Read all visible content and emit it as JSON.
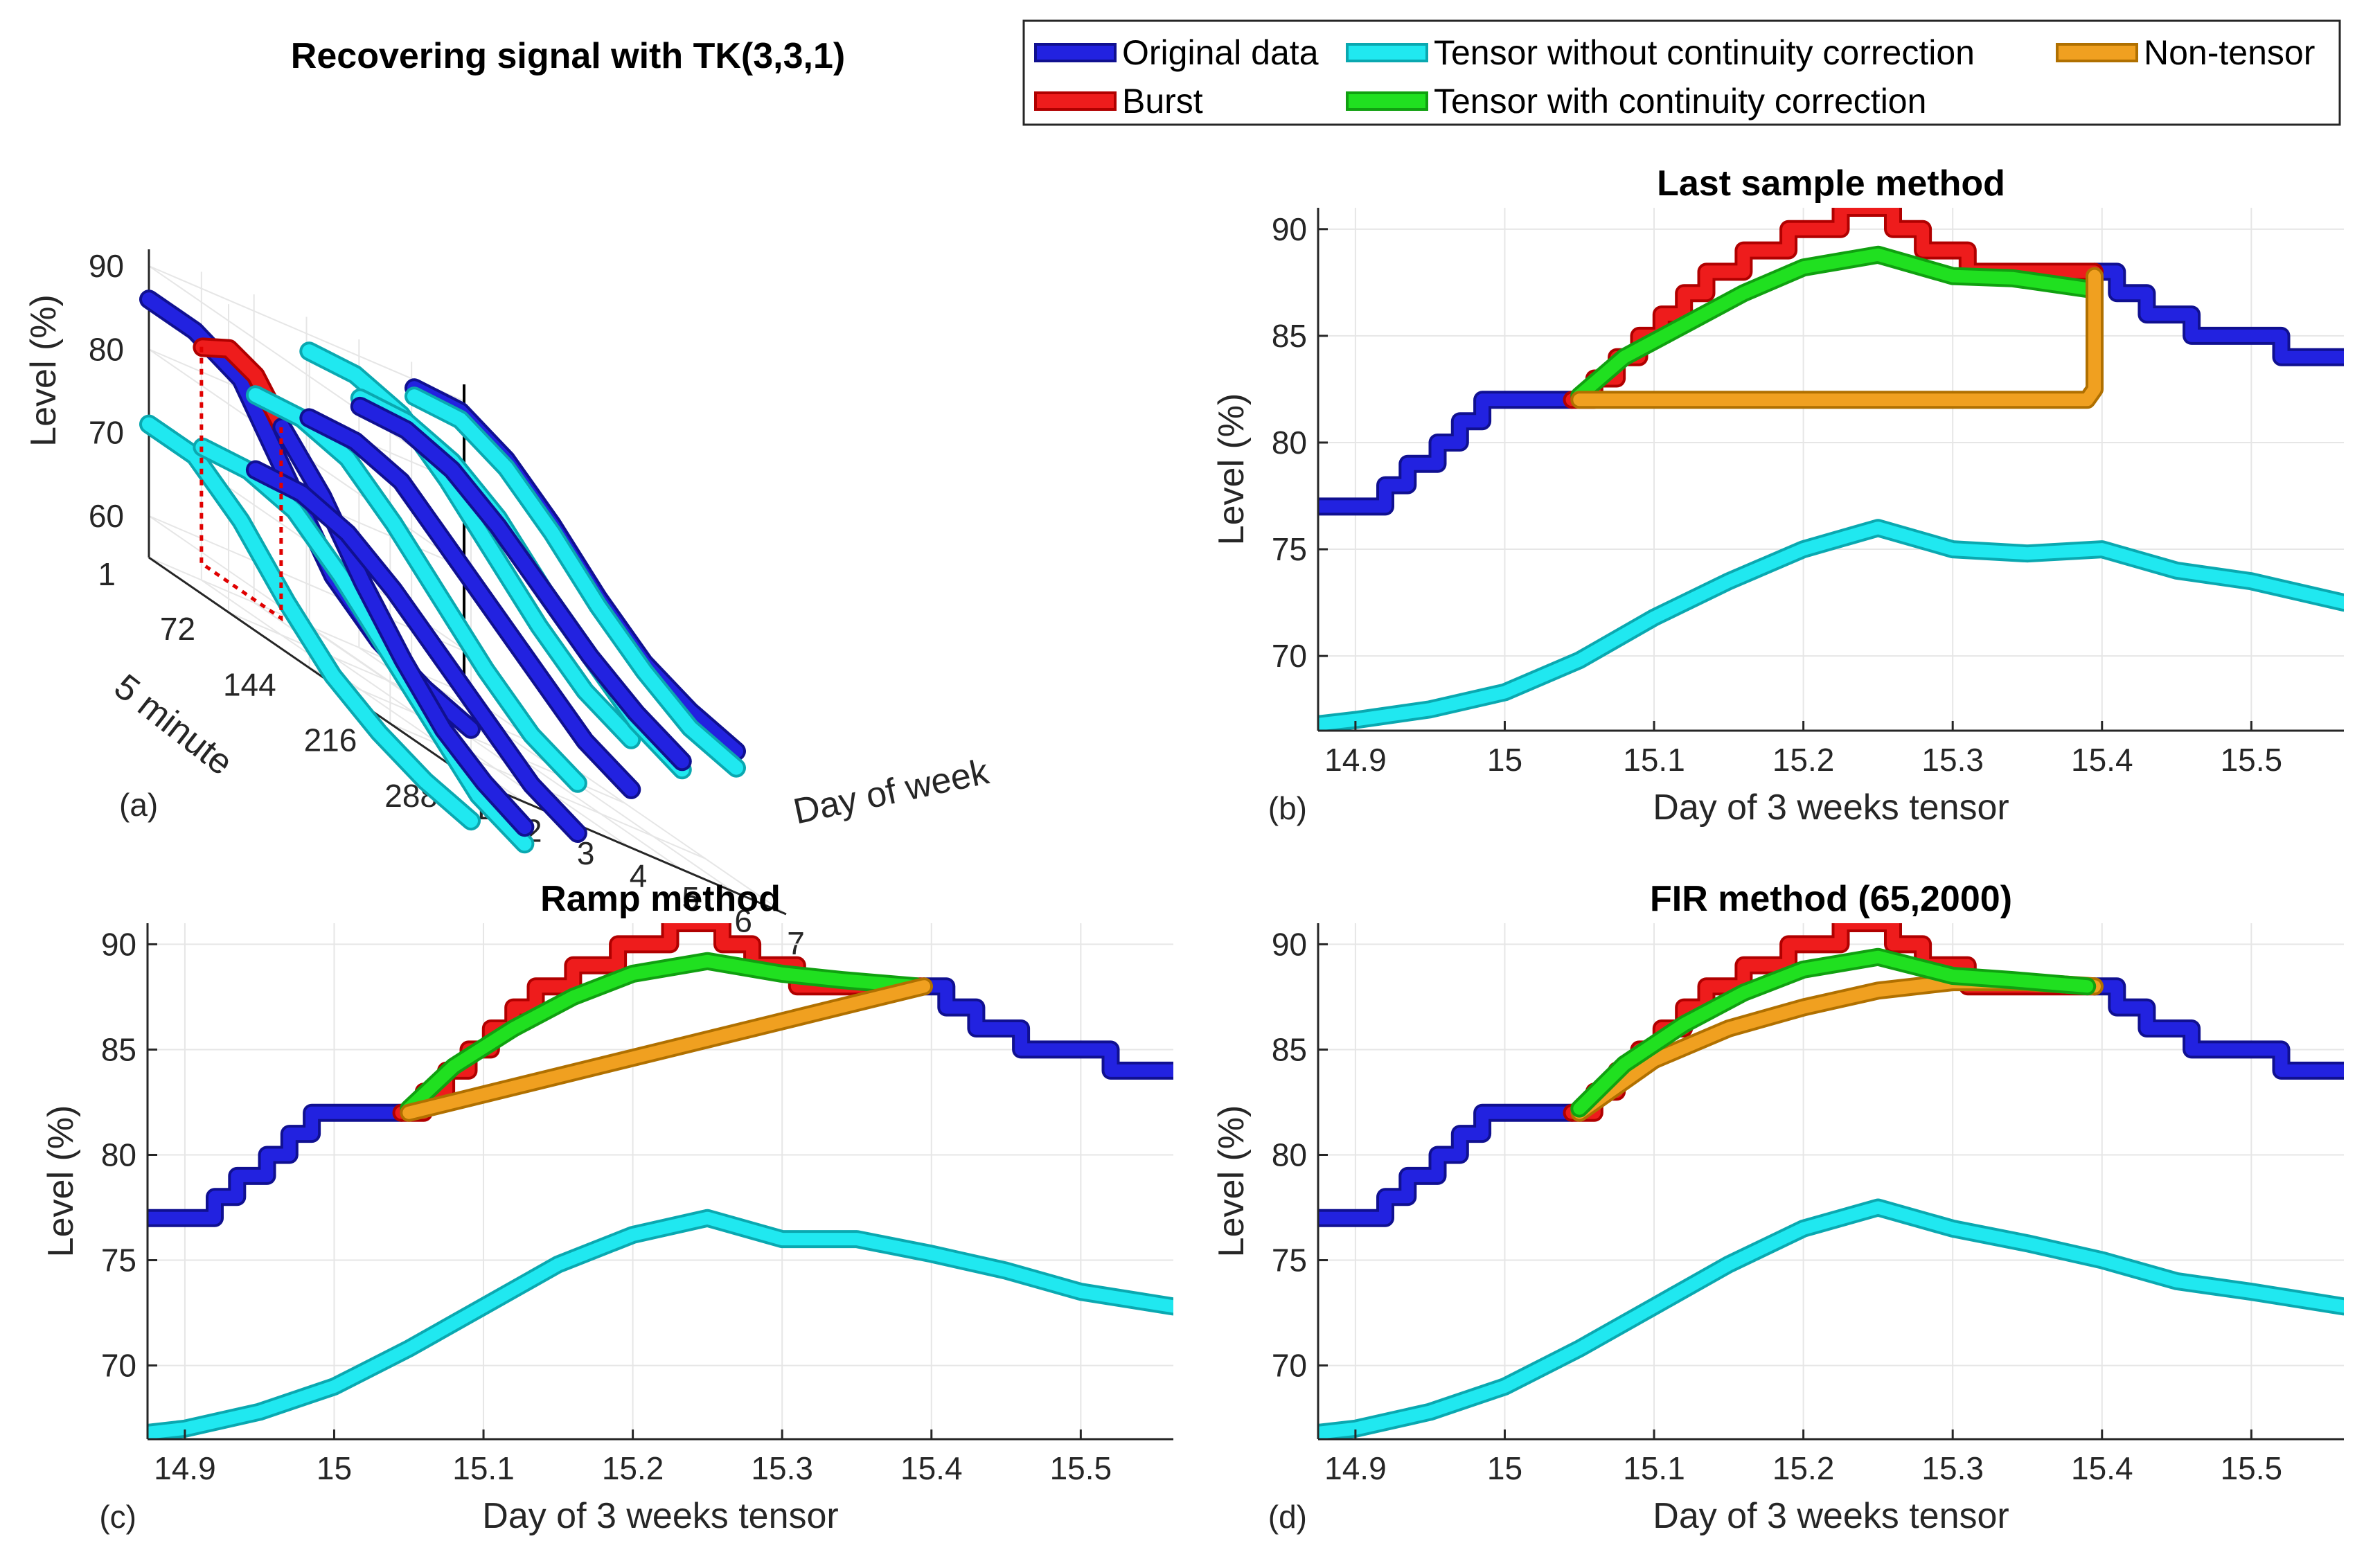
{
  "legend": [
    {
      "label": "Original data",
      "color": "#2222e0",
      "edge": "#101090"
    },
    {
      "label": "Burst",
      "color": "#ee1c1c",
      "edge": "#b00000"
    },
    {
      "label": "Tensor without continuity correction",
      "color": "#20e8f0",
      "edge": "#0aa8b0"
    },
    {
      "label": "Tensor with continuity correction",
      "color": "#20e020",
      "edge": "#10a010"
    },
    {
      "label": "Non-tensor",
      "color": "#f0a020",
      "edge": "#b07000"
    }
  ],
  "chart_data": [
    {
      "id": "a",
      "type": "line",
      "title": "Recovering signal with TK(3,3,1)",
      "panel_label": "(a)",
      "zlabel": "Level (%)",
      "ylabel": "5 minute",
      "xlabel": "Day of week",
      "z_ticks": [
        "60",
        "70",
        "80",
        "90"
      ],
      "y_ticks": [
        "1",
        "72",
        "144",
        "216",
        "288"
      ],
      "x_ticks": [
        "1",
        "2",
        "3",
        "4",
        "5",
        "6",
        "7"
      ],
      "zlim": [
        55,
        92
      ],
      "ylim": [
        1,
        288
      ],
      "xlim": [
        1,
        7
      ],
      "series": [
        {
          "name": "Original data",
          "day": 1,
          "slot_range": [
            1,
            288
          ],
          "values": [
            86,
            86,
            84,
            76,
            68,
            64,
            62,
            61
          ]
        },
        {
          "name": "Tensor without continuity correction",
          "day": 1,
          "slot_range": [
            1,
            288
          ],
          "values": [
            71,
            71,
            67,
            61,
            56,
            53,
            51,
            50
          ]
        },
        {
          "name": "Burst",
          "day": 2,
          "slot_range": [
            1,
            72
          ],
          "values": [
            83,
            85,
            84,
            80
          ]
        },
        {
          "name": "Tensor without continuity correction",
          "day": 2,
          "slot_range": [
            1,
            288
          ],
          "values": [
            71,
            72,
            71,
            67,
            62,
            57,
            52,
            50
          ]
        },
        {
          "name": "Original data",
          "day": 2,
          "slot_range": [
            72,
            288
          ],
          "values": [
            80,
            75,
            68,
            62,
            57,
            54,
            52
          ]
        },
        {
          "name": "Original data",
          "day": 3,
          "slot_range": [
            1,
            288
          ],
          "values": [
            71,
            72,
            71,
            68,
            64,
            60,
            56,
            54
          ]
        },
        {
          "name": "Tensor without continuity correction",
          "day": 3,
          "slot_range": [
            1,
            288
          ],
          "values": [
            80,
            81,
            80,
            76,
            71,
            66,
            62,
            60
          ]
        },
        {
          "name": "Original data",
          "day": 4,
          "slot_range": [
            1,
            288
          ],
          "values": [
            80,
            81,
            80,
            76,
            72,
            68,
            64,
            62
          ]
        },
        {
          "name": "Tensor without continuity correction",
          "day": 4,
          "slot_range": [
            1,
            288
          ],
          "values": [
            88,
            89,
            88,
            84,
            79,
            74,
            70,
            68
          ]
        },
        {
          "name": "Tensor without continuity correction",
          "day": 5,
          "slot_range": [
            1,
            288
          ],
          "values": [
            85,
            86,
            85,
            82,
            77,
            73,
            69,
            67
          ]
        },
        {
          "name": "Original data",
          "day": 5,
          "slot_range": [
            1,
            288
          ],
          "values": [
            84,
            85,
            84,
            81,
            77,
            73,
            70,
            68
          ]
        },
        {
          "name": "Original data",
          "day": 6,
          "slot_range": [
            1,
            288
          ],
          "values": [
            89,
            90,
            88,
            84,
            79,
            75,
            73,
            72
          ]
        },
        {
          "name": "Tensor without continuity correction",
          "day": 6,
          "slot_range": [
            1,
            288
          ],
          "values": [
            88,
            89,
            87,
            83,
            78,
            74,
            71,
            70
          ]
        }
      ]
    },
    {
      "id": "b",
      "type": "line",
      "title": "Last sample method",
      "panel_label": "(b)",
      "xlabel": "Day of 3 weeks tensor",
      "ylabel": "Level (%)",
      "xlim": [
        14.875,
        15.562
      ],
      "ylim": [
        66.5,
        91
      ],
      "x_ticks": [
        "14.9",
        "15",
        "15.1",
        "15.2",
        "15.3",
        "15.4",
        "15.5"
      ],
      "y_ticks": [
        "70",
        "75",
        "80",
        "85",
        "90"
      ],
      "series": [
        {
          "name": "Original data",
          "x": [
            14.875,
            14.92,
            14.92,
            14.935,
            14.935,
            14.955,
            14.955,
            14.97,
            14.97,
            14.985,
            14.985,
            15.0,
            15.0,
            15.015,
            15.015,
            15.045
          ],
          "y": [
            77,
            77,
            78,
            78,
            79,
            79,
            80,
            80,
            81,
            81,
            82,
            82,
            82,
            82,
            82,
            82
          ]
        },
        {
          "name": "Original data",
          "x": [
            15.395,
            15.41,
            15.41,
            15.43,
            15.43,
            15.46,
            15.46,
            15.49,
            15.49,
            15.52,
            15.52,
            15.562
          ],
          "y": [
            88,
            88,
            87,
            87,
            86,
            86,
            85,
            85,
            85,
            85,
            84,
            84
          ]
        },
        {
          "name": "Burst",
          "x": [
            15.045,
            15.06,
            15.06,
            15.075,
            15.075,
            15.09,
            15.09,
            15.105,
            15.105,
            15.12,
            15.12,
            15.135,
            15.135,
            15.16,
            15.16,
            15.19,
            15.19,
            15.225,
            15.225,
            15.26,
            15.26,
            15.28,
            15.28,
            15.31,
            15.31,
            15.395
          ],
          "y": [
            82,
            82,
            83,
            83,
            84,
            84,
            85,
            85,
            86,
            86,
            87,
            87,
            88,
            88,
            89,
            89,
            90,
            90,
            91,
            91,
            90,
            90,
            89,
            89,
            88,
            88
          ]
        },
        {
          "name": "Tensor with continuity correction",
          "x": [
            15.05,
            15.08,
            15.12,
            15.16,
            15.2,
            15.25,
            15.3,
            15.34,
            15.39
          ],
          "y": [
            82.2,
            84.0,
            85.5,
            87.0,
            88.2,
            88.8,
            87.8,
            87.7,
            87.2
          ]
        },
        {
          "name": "Non-tensor",
          "x": [
            15.05,
            15.39,
            15.395,
            15.395
          ],
          "y": [
            82.0,
            82.0,
            82.5,
            87.8
          ]
        },
        {
          "name": "Tensor without continuity correction",
          "x": [
            14.875,
            14.9,
            14.95,
            15.0,
            15.05,
            15.1,
            15.15,
            15.2,
            15.25,
            15.3,
            15.35,
            15.4,
            15.45,
            15.5,
            15.562
          ],
          "y": [
            66.8,
            67.0,
            67.5,
            68.3,
            69.8,
            71.8,
            73.5,
            75.0,
            76.0,
            75.0,
            74.8,
            75.0,
            74.0,
            73.5,
            72.5
          ]
        }
      ]
    },
    {
      "id": "c",
      "type": "line",
      "title": "Ramp method",
      "panel_label": "(c)",
      "xlabel": "Day of 3 weeks tensor",
      "ylabel": "Level (%)",
      "xlim": [
        14.875,
        15.562
      ],
      "ylim": [
        66.5,
        91
      ],
      "x_ticks": [
        "14.9",
        "15",
        "15.1",
        "15.2",
        "15.3",
        "15.4",
        "15.5"
      ],
      "y_ticks": [
        "70",
        "75",
        "80",
        "85",
        "90"
      ],
      "series": [
        {
          "name": "Original data",
          "x": [
            14.875,
            14.92,
            14.92,
            14.935,
            14.935,
            14.955,
            14.955,
            14.97,
            14.97,
            14.985,
            14.985,
            15.0,
            15.0,
            15.015,
            15.015,
            15.045
          ],
          "y": [
            77,
            77,
            78,
            78,
            79,
            79,
            80,
            80,
            81,
            81,
            82,
            82,
            82,
            82,
            82,
            82
          ]
        },
        {
          "name": "Original data",
          "x": [
            15.395,
            15.41,
            15.41,
            15.43,
            15.43,
            15.46,
            15.46,
            15.49,
            15.49,
            15.52,
            15.52,
            15.562
          ],
          "y": [
            88,
            88,
            87,
            87,
            86,
            86,
            85,
            85,
            85,
            85,
            84,
            84
          ]
        },
        {
          "name": "Burst",
          "x": [
            15.045,
            15.06,
            15.06,
            15.075,
            15.075,
            15.09,
            15.09,
            15.105,
            15.105,
            15.12,
            15.12,
            15.135,
            15.135,
            15.16,
            15.16,
            15.19,
            15.19,
            15.225,
            15.225,
            15.26,
            15.26,
            15.28,
            15.28,
            15.31,
            15.31,
            15.395
          ],
          "y": [
            82,
            82,
            83,
            83,
            84,
            84,
            85,
            85,
            86,
            86,
            87,
            87,
            88,
            88,
            89,
            89,
            90,
            90,
            91,
            91,
            90,
            90,
            89,
            89,
            88,
            88
          ]
        },
        {
          "name": "Tensor with continuity correction",
          "x": [
            15.05,
            15.08,
            15.12,
            15.16,
            15.2,
            15.25,
            15.3,
            15.34,
            15.39
          ],
          "y": [
            82.2,
            84.2,
            86.0,
            87.5,
            88.6,
            89.2,
            88.6,
            88.3,
            88.0
          ]
        },
        {
          "name": "Non-tensor",
          "x": [
            15.05,
            15.395
          ],
          "y": [
            82.0,
            88.0
          ]
        },
        {
          "name": "Tensor without continuity correction",
          "x": [
            14.875,
            14.9,
            14.95,
            15.0,
            15.05,
            15.1,
            15.15,
            15.2,
            15.25,
            15.3,
            15.35,
            15.4,
            15.45,
            15.5,
            15.562
          ],
          "y": [
            66.8,
            67.0,
            67.8,
            69.0,
            70.8,
            72.8,
            74.8,
            76.2,
            77.0,
            76.0,
            76.0,
            75.3,
            74.5,
            73.5,
            72.8
          ]
        }
      ]
    },
    {
      "id": "d",
      "type": "line",
      "title": "FIR method (65,2000)",
      "panel_label": "(d)",
      "xlabel": "Day of 3 weeks tensor",
      "ylabel": "Level (%)",
      "xlim": [
        14.875,
        15.562
      ],
      "ylim": [
        66.5,
        91
      ],
      "x_ticks": [
        "14.9",
        "15",
        "15.1",
        "15.2",
        "15.3",
        "15.4",
        "15.5"
      ],
      "y_ticks": [
        "70",
        "75",
        "80",
        "85",
        "90"
      ],
      "series": [
        {
          "name": "Original data",
          "x": [
            14.875,
            14.92,
            14.92,
            14.935,
            14.935,
            14.955,
            14.955,
            14.97,
            14.97,
            14.985,
            14.985,
            15.0,
            15.0,
            15.015,
            15.015,
            15.045
          ],
          "y": [
            77,
            77,
            78,
            78,
            79,
            79,
            80,
            80,
            81,
            81,
            82,
            82,
            82,
            82,
            82,
            82
          ]
        },
        {
          "name": "Original data",
          "x": [
            15.395,
            15.41,
            15.41,
            15.43,
            15.43,
            15.46,
            15.46,
            15.49,
            15.49,
            15.52,
            15.52,
            15.562
          ],
          "y": [
            88,
            88,
            87,
            87,
            86,
            86,
            85,
            85,
            85,
            85,
            84,
            84
          ]
        },
        {
          "name": "Burst",
          "x": [
            15.045,
            15.06,
            15.06,
            15.075,
            15.075,
            15.09,
            15.09,
            15.105,
            15.105,
            15.12,
            15.12,
            15.135,
            15.135,
            15.16,
            15.16,
            15.19,
            15.19,
            15.225,
            15.225,
            15.26,
            15.26,
            15.28,
            15.28,
            15.31,
            15.31,
            15.395
          ],
          "y": [
            82,
            82,
            83,
            83,
            84,
            84,
            85,
            85,
            86,
            86,
            87,
            87,
            88,
            88,
            89,
            89,
            90,
            90,
            91,
            91,
            90,
            90,
            89,
            89,
            88,
            88
          ]
        },
        {
          "name": "Non-tensor",
          "x": [
            15.05,
            15.1,
            15.15,
            15.2,
            15.25,
            15.3,
            15.35,
            15.395
          ],
          "y": [
            82.0,
            84.5,
            86.0,
            87.0,
            87.8,
            88.2,
            88.2,
            88.0
          ]
        },
        {
          "name": "Tensor with continuity correction",
          "x": [
            15.05,
            15.08,
            15.12,
            15.16,
            15.2,
            15.25,
            15.3,
            15.34,
            15.39
          ],
          "y": [
            82.2,
            84.3,
            86.2,
            87.7,
            88.8,
            89.4,
            88.5,
            88.3,
            88.0
          ]
        },
        {
          "name": "Tensor without continuity correction",
          "x": [
            14.875,
            14.9,
            14.95,
            15.0,
            15.05,
            15.1,
            15.15,
            15.2,
            15.25,
            15.3,
            15.35,
            15.4,
            15.45,
            15.5,
            15.562
          ],
          "y": [
            66.8,
            67.0,
            67.8,
            69.0,
            70.8,
            72.8,
            74.8,
            76.5,
            77.5,
            76.5,
            75.8,
            75.0,
            74.0,
            73.5,
            72.8
          ]
        }
      ]
    }
  ]
}
